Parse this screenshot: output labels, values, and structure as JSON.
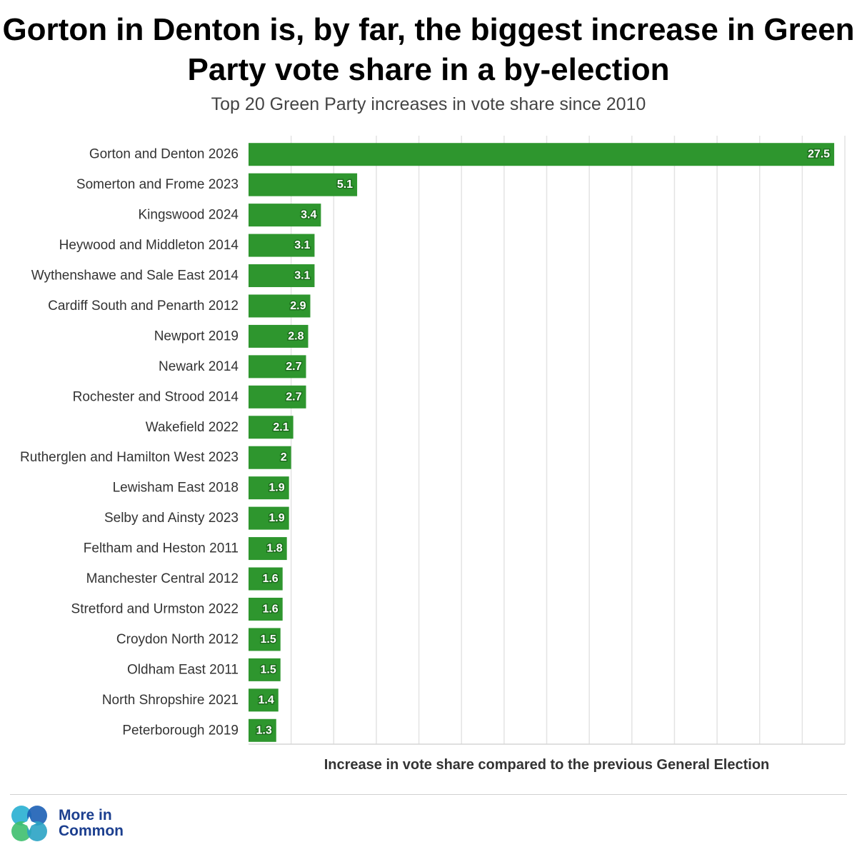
{
  "title": "Gorton in Denton is, by far, the biggest increase in Green Party vote share in a by-election",
  "subtitle": "Top 20 Green Party increases in vote share since 2010",
  "colors": {
    "bar": "#2e962e",
    "grid": "#e3e3e3",
    "label_stroke": "#1d6e1d"
  },
  "chart_data": {
    "type": "bar",
    "orientation": "horizontal",
    "categories": [
      "Gorton and Denton 2026",
      "Somerton and Frome 2023",
      "Kingswood 2024",
      "Heywood and Middleton 2014",
      "Wythenshawe and Sale East 2014",
      "Cardiff South and Penarth 2012",
      "Newport 2019",
      "Newark 2014",
      "Rochester and Strood 2014",
      "Wakefield 2022",
      "Rutherglen and Hamilton West 2023",
      "Lewisham East 2018",
      "Selby and Ainsty 2023",
      "Feltham and Heston 2011",
      "Manchester Central 2012",
      "Stretford and Urmston 2022",
      "Croydon North 2012",
      "Oldham East 2011",
      "North Shropshire 2021",
      "Peterborough 2019"
    ],
    "values": [
      27.5,
      5.1,
      3.4,
      3.1,
      3.1,
      2.9,
      2.8,
      2.7,
      2.7,
      2.1,
      2,
      1.9,
      1.9,
      1.8,
      1.6,
      1.6,
      1.5,
      1.5,
      1.4,
      1.3
    ],
    "value_labels": [
      "27.5",
      "5.1",
      "3.4",
      "3.1",
      "3.1",
      "2.9",
      "2.8",
      "2.7",
      "2.7",
      "2.1",
      "2",
      "1.9",
      "1.9",
      "1.8",
      "1.6",
      "1.6",
      "1.5",
      "1.5",
      "1.4",
      "1.3"
    ],
    "xlabel": "Increase in vote share compared to the previous General Election",
    "ylabel": "",
    "xlim": [
      0,
      28
    ],
    "grid_step": 2,
    "grid": true,
    "legend": "none"
  },
  "footer": {
    "logo_line1": "More in",
    "logo_line2": "Common",
    "logo_icon": "more-in-common-logo-icon"
  }
}
